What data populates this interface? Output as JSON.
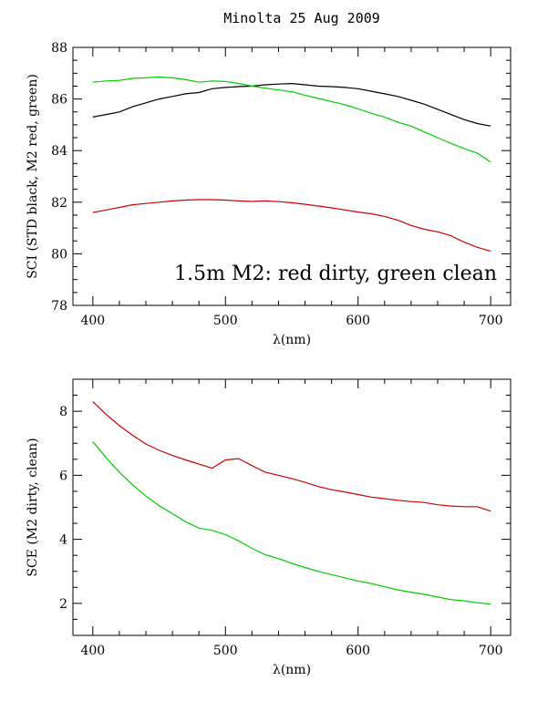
{
  "figure_title": "Minolta 25 Aug 2009",
  "colors": {
    "black": "#000000",
    "red": "#cc0000",
    "green": "#00cc00"
  },
  "chart_data": [
    {
      "type": "line",
      "title": "Minolta 25 Aug 2009",
      "xlabel": "λ(nm)",
      "ylabel": "SCI (STD black, M2 red, green)",
      "xlim": [
        385,
        715
      ],
      "ylim": [
        78,
        88
      ],
      "xticks": [
        400,
        500,
        600,
        700
      ],
      "yticks": [
        78,
        80,
        82,
        84,
        86,
        88
      ],
      "annotation": "1.5m M2: red dirty, green clean",
      "series": [
        {
          "name": "STD",
          "color": "#000000",
          "x": [
            400,
            410,
            420,
            430,
            440,
            450,
            460,
            470,
            480,
            490,
            500,
            510,
            520,
            530,
            540,
            550,
            560,
            570,
            580,
            590,
            600,
            610,
            620,
            630,
            640,
            650,
            660,
            670,
            680,
            690,
            700
          ],
          "values": [
            85.3,
            85.4,
            85.5,
            85.7,
            85.85,
            86.0,
            86.1,
            86.2,
            86.25,
            86.4,
            86.45,
            86.48,
            86.5,
            86.55,
            86.58,
            86.6,
            86.55,
            86.5,
            86.48,
            86.45,
            86.4,
            86.3,
            86.2,
            86.1,
            85.95,
            85.8,
            85.6,
            85.4,
            85.2,
            85.05,
            84.95
          ]
        },
        {
          "name": "M2 dirty",
          "color": "#cc0000",
          "x": [
            400,
            410,
            420,
            430,
            440,
            450,
            460,
            470,
            480,
            490,
            500,
            510,
            520,
            530,
            540,
            550,
            560,
            570,
            580,
            590,
            600,
            610,
            620,
            630,
            640,
            650,
            660,
            670,
            680,
            690,
            700
          ],
          "values": [
            81.6,
            81.7,
            81.8,
            81.9,
            81.95,
            82.0,
            82.05,
            82.08,
            82.1,
            82.1,
            82.08,
            82.05,
            82.03,
            82.05,
            82.02,
            81.98,
            81.92,
            81.85,
            81.78,
            81.7,
            81.62,
            81.55,
            81.45,
            81.3,
            81.1,
            80.95,
            80.85,
            80.7,
            80.45,
            80.25,
            80.1
          ]
        },
        {
          "name": "M2 clean",
          "color": "#00cc00",
          "x": [
            400,
            410,
            420,
            430,
            440,
            450,
            460,
            470,
            480,
            490,
            500,
            510,
            520,
            530,
            540,
            550,
            560,
            570,
            580,
            590,
            600,
            610,
            620,
            630,
            640,
            650,
            660,
            670,
            680,
            690,
            700
          ],
          "values": [
            86.65,
            86.7,
            86.72,
            86.8,
            86.82,
            86.85,
            86.82,
            86.75,
            86.65,
            86.7,
            86.68,
            86.6,
            86.5,
            86.42,
            86.35,
            86.28,
            86.15,
            86.02,
            85.9,
            85.78,
            85.62,
            85.45,
            85.3,
            85.1,
            84.95,
            84.72,
            84.5,
            84.28,
            84.08,
            83.9,
            83.55
          ]
        }
      ]
    },
    {
      "type": "line",
      "xlabel": "λ(nm)",
      "ylabel": "SCE (M2 dirty, clean)",
      "xlim": [
        385,
        715
      ],
      "ylim": [
        1,
        9
      ],
      "xticks": [
        400,
        500,
        600,
        700
      ],
      "yticks": [
        2,
        4,
        6,
        8
      ],
      "series": [
        {
          "name": "M2 dirty",
          "color": "#cc0000",
          "x": [
            400,
            410,
            420,
            430,
            440,
            450,
            460,
            470,
            480,
            490,
            500,
            510,
            520,
            530,
            540,
            550,
            560,
            570,
            580,
            590,
            600,
            610,
            620,
            630,
            640,
            650,
            660,
            670,
            680,
            690,
            700
          ],
          "values": [
            8.3,
            7.9,
            7.55,
            7.25,
            6.98,
            6.78,
            6.62,
            6.48,
            6.35,
            6.22,
            6.48,
            6.52,
            6.3,
            6.1,
            6.0,
            5.9,
            5.78,
            5.65,
            5.55,
            5.48,
            5.4,
            5.32,
            5.27,
            5.22,
            5.18,
            5.15,
            5.08,
            5.04,
            5.02,
            5.02,
            4.88
          ]
        },
        {
          "name": "M2 clean",
          "color": "#00cc00",
          "x": [
            400,
            410,
            420,
            430,
            440,
            450,
            460,
            470,
            480,
            490,
            500,
            510,
            520,
            530,
            540,
            550,
            560,
            570,
            580,
            590,
            600,
            610,
            620,
            630,
            640,
            650,
            660,
            670,
            680,
            690,
            700
          ],
          "values": [
            7.05,
            6.55,
            6.1,
            5.7,
            5.35,
            5.05,
            4.8,
            4.55,
            4.35,
            4.28,
            4.15,
            3.95,
            3.72,
            3.52,
            3.4,
            3.25,
            3.12,
            3.0,
            2.9,
            2.8,
            2.7,
            2.62,
            2.52,
            2.42,
            2.35,
            2.28,
            2.2,
            2.12,
            2.08,
            2.02,
            1.98
          ]
        }
      ]
    }
  ]
}
